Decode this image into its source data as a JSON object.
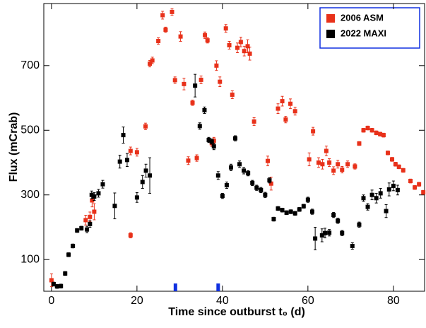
{
  "chart_data": {
    "type": "scatter",
    "xlabel": "Time since outburst t₀ (d)",
    "ylabel": "Flux  (mCrab)",
    "xlim": [
      -1.8,
      87.3
    ],
    "ylim": [
      2,
      892
    ],
    "xticks": [
      0,
      20,
      40,
      60,
      80
    ],
    "yticks": [
      100,
      300,
      500,
      700
    ],
    "legend": "upper right",
    "epochs": [
      29,
      39
    ],
    "epoch_color": "#1030e0",
    "series": [
      {
        "name": "2006 ASM",
        "color": "#e8311a",
        "x": [
          0,
          8,
          9,
          9.5,
          10,
          18.5,
          18.5,
          20,
          22,
          23,
          23.6,
          25,
          26,
          26.7,
          28.2,
          28.9,
          30.2,
          31,
          32,
          33,
          34,
          35,
          35.9,
          36.5,
          37.5,
          38,
          38.6,
          39.4,
          40.8,
          41.6,
          42.3,
          43.5,
          44.3,
          45.1,
          45.9,
          46.4,
          47.4,
          50.6,
          51.4,
          53,
          54,
          54.8,
          55.9,
          57,
          60.3,
          61.2,
          62.5,
          63.4,
          64.3,
          65,
          66,
          67,
          68,
          69.3,
          71,
          72,
          73,
          74,
          75,
          76,
          76.9,
          77.7,
          78.7,
          79.7,
          80.5,
          81.3,
          82.3,
          84,
          85,
          86,
          87
        ],
        "values": [
          36,
          222,
          232,
          283,
          248,
          436,
          175,
          432,
          512,
          706,
          716,
          776,
          856,
          811,
          866,
          655,
          790,
          643,
          406,
          585,
          414,
          656,
          794,
          778,
          460,
          468,
          700,
          650,
          815,
          763,
          610,
          755,
          773,
          745,
          760,
          737,
          527,
          405,
          335,
          567,
          590,
          533,
          582,
          559,
          410,
          497,
          400,
          395,
          436,
          400,
          375,
          395,
          378,
          395,
          388,
          459,
          500,
          507,
          500,
          492,
          488,
          485,
          430,
          410,
          395,
          387,
          376,
          343,
          323,
          333,
          308
        ],
        "errors": [
          20,
          15,
          15,
          20,
          25,
          12,
          8,
          12,
          10,
          10,
          10,
          10,
          12,
          8,
          10,
          10,
          15,
          18,
          12,
          8,
          10,
          12,
          10,
          8,
          10,
          10,
          15,
          15,
          12,
          12,
          12,
          15,
          15,
          15,
          20,
          20,
          12,
          15,
          20,
          15,
          15,
          10,
          15,
          12,
          20,
          12,
          15,
          15,
          15,
          12,
          12,
          12,
          10,
          10,
          8,
          6,
          6,
          6,
          6,
          6,
          6,
          6,
          6,
          6,
          6,
          6,
          6,
          6,
          6,
          6,
          6
        ]
      },
      {
        "name": "2022 MAXI",
        "color": "#000000",
        "x": [
          0.5,
          1.3,
          2.2,
          3.2,
          4,
          5,
          6,
          7,
          8.3,
          9,
          9.4,
          10,
          11,
          12,
          14.8,
          16,
          16.8,
          17.7,
          20,
          21.3,
          22.1,
          23,
          33.6,
          34.7,
          35.8,
          36.8,
          37.5,
          38,
          39,
          40,
          41,
          42,
          43,
          44,
          45,
          46,
          47,
          48,
          49,
          50,
          51,
          52,
          53,
          54,
          55,
          56,
          57,
          58,
          59,
          60,
          61,
          61.7,
          63.3,
          64,
          65,
          66,
          67,
          68,
          70.4,
          72,
          73,
          74,
          75,
          76,
          77,
          78.3,
          79,
          80,
          81
        ],
        "values": [
          24,
          17,
          18,
          57,
          115,
          142,
          190,
          197,
          193,
          210,
          300,
          295,
          305,
          333,
          266,
          403,
          485,
          408,
          292,
          340,
          375,
          360,
          638,
          513,
          562,
          470,
          465,
          450,
          360,
          297,
          330,
          385,
          475,
          395,
          375,
          367,
          337,
          322,
          315,
          300,
          345,
          225,
          258,
          253,
          245,
          248,
          243,
          255,
          265,
          285,
          248,
          165,
          175,
          182,
          183,
          238,
          220,
          182,
          142,
          208,
          290,
          263,
          300,
          290,
          305,
          250,
          317,
          328,
          315
        ],
        "errors": [
          6,
          6,
          6,
          6,
          6,
          6,
          6,
          6,
          10,
          10,
          12,
          12,
          12,
          12,
          40,
          20,
          25,
          20,
          15,
          20,
          20,
          55,
          35,
          10,
          10,
          8,
          8,
          10,
          12,
          8,
          10,
          10,
          8,
          10,
          10,
          8,
          8,
          8,
          8,
          8,
          8,
          6,
          6,
          6,
          6,
          6,
          6,
          6,
          6,
          8,
          8,
          35,
          20,
          15,
          10,
          8,
          8,
          8,
          10,
          8,
          10,
          10,
          15,
          15,
          15,
          20,
          20,
          15,
          15
        ]
      }
    ]
  }
}
